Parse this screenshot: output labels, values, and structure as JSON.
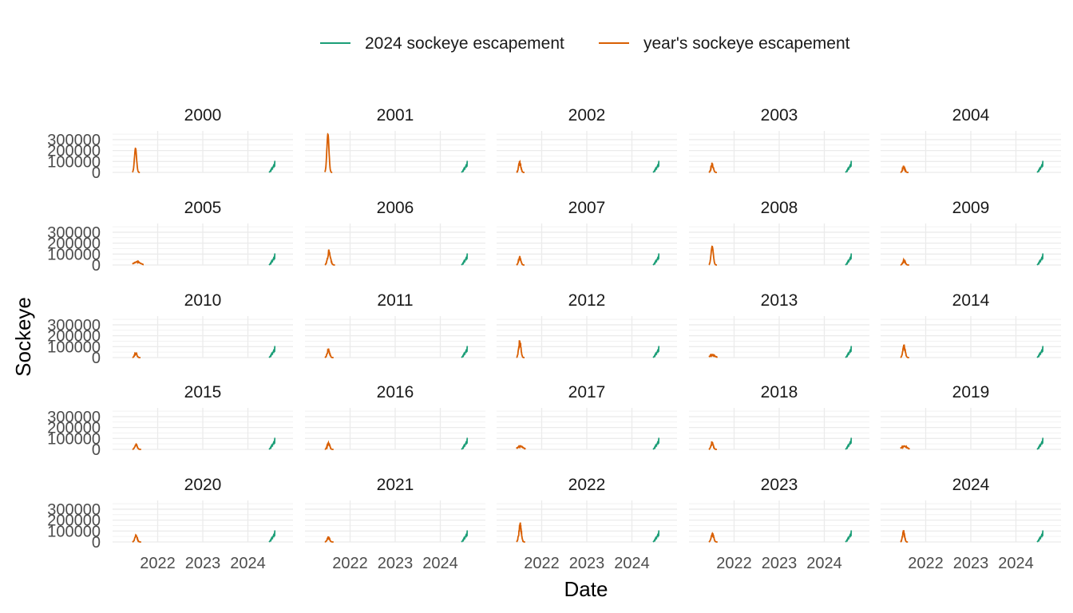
{
  "chart_data": {
    "type": "line",
    "layout": "facet_wrap",
    "facet_rows": 5,
    "facet_cols": 5,
    "xlabel": "Date",
    "ylabel": "Sockeye",
    "ylim": [
      0,
      380000
    ],
    "x_range": [
      "2021-01-01",
      "2024-12-31"
    ],
    "x_ticks": [
      "2022",
      "2023",
      "2024"
    ],
    "x_tick_values": [
      "2022-01-01",
      "2023-01-01",
      "2024-01-01"
    ],
    "y_ticks": [
      "0",
      "100000",
      "200000",
      "300000"
    ],
    "y_tick_values": [
      0,
      100000,
      200000,
      300000
    ],
    "grid": true,
    "legend_position": "top",
    "colors": {
      "current": "#1b9e77",
      "year": "#d95f02"
    },
    "legend": [
      {
        "label": "2024 sockeye escapement",
        "color": "#1b9e77"
      },
      {
        "label": "year's sockeye escapement",
        "color": "#d95f02"
      }
    ],
    "current_series": {
      "name": "2024 sockeye escapement",
      "start": "2024-06-20",
      "end": "2024-08-10",
      "peak": 100000
    },
    "panels": [
      {
        "year": "2000",
        "peak": 220000,
        "start": "2021-06-10",
        "end": "2021-08-10",
        "shape": "smooth"
      },
      {
        "year": "2001",
        "peak": 350000,
        "start": "2021-06-10",
        "end": "2021-08-10",
        "shape": "smooth"
      },
      {
        "year": "2002",
        "peak": 95000,
        "start": "2021-06-10",
        "end": "2021-08-15",
        "shape": "ragged"
      },
      {
        "year": "2003",
        "peak": 80000,
        "start": "2021-06-10",
        "end": "2021-08-15",
        "shape": "ragged"
      },
      {
        "year": "2004",
        "peak": 55000,
        "start": "2021-06-10",
        "end": "2021-08-15",
        "shape": "ragged"
      },
      {
        "year": "2005",
        "peak": 30000,
        "start": "2021-06-10",
        "end": "2021-09-10",
        "shape": "flat"
      },
      {
        "year": "2006",
        "peak": 135000,
        "start": "2021-06-10",
        "end": "2021-09-01",
        "shape": "ragged"
      },
      {
        "year": "2007",
        "peak": 75000,
        "start": "2021-06-10",
        "end": "2021-08-15",
        "shape": "ragged"
      },
      {
        "year": "2008",
        "peak": 170000,
        "start": "2021-06-10",
        "end": "2021-08-15",
        "shape": "smooth"
      },
      {
        "year": "2009",
        "peak": 45000,
        "start": "2021-06-10",
        "end": "2021-08-20",
        "shape": "ragged"
      },
      {
        "year": "2010",
        "peak": 45000,
        "start": "2021-06-10",
        "end": "2021-08-15",
        "shape": "ragged"
      },
      {
        "year": "2011",
        "peak": 75000,
        "start": "2021-06-10",
        "end": "2021-08-20",
        "shape": "ragged"
      },
      {
        "year": "2012",
        "peak": 155000,
        "start": "2021-06-10",
        "end": "2021-08-15",
        "shape": "ragged"
      },
      {
        "year": "2013",
        "peak": 25000,
        "start": "2021-06-10",
        "end": "2021-08-20",
        "shape": "flat"
      },
      {
        "year": "2014",
        "peak": 105000,
        "start": "2021-06-10",
        "end": "2021-08-20",
        "shape": "ragged"
      },
      {
        "year": "2015",
        "peak": 45000,
        "start": "2021-06-10",
        "end": "2021-08-20",
        "shape": "ragged"
      },
      {
        "year": "2016",
        "peak": 60000,
        "start": "2021-06-10",
        "end": "2021-08-20",
        "shape": "ragged"
      },
      {
        "year": "2017",
        "peak": 30000,
        "start": "2021-06-10",
        "end": "2021-08-25",
        "shape": "flat"
      },
      {
        "year": "2018",
        "peak": 65000,
        "start": "2021-06-10",
        "end": "2021-08-15",
        "shape": "ragged"
      },
      {
        "year": "2019",
        "peak": 30000,
        "start": "2021-06-10",
        "end": "2021-08-25",
        "shape": "flat"
      },
      {
        "year": "2020",
        "peak": 60000,
        "start": "2021-06-10",
        "end": "2021-08-20",
        "shape": "ragged"
      },
      {
        "year": "2021",
        "peak": 45000,
        "start": "2021-06-10",
        "end": "2021-08-20",
        "shape": "ragged"
      },
      {
        "year": "2022",
        "peak": 160000,
        "start": "2021-06-10",
        "end": "2021-08-20",
        "shape": "ragged"
      },
      {
        "year": "2023",
        "peak": 80000,
        "start": "2021-06-10",
        "end": "2021-08-20",
        "shape": "ragged"
      },
      {
        "year": "2024",
        "peak": 100000,
        "start": "2021-06-10",
        "end": "2021-08-10",
        "shape": "ragged"
      }
    ]
  }
}
